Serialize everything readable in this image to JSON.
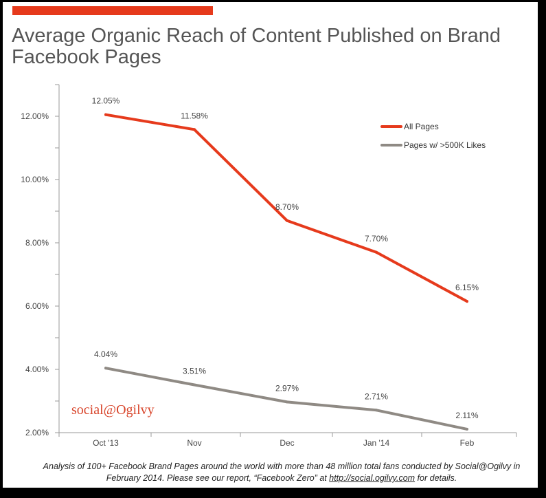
{
  "title": "Average Organic Reach of Content Published on Brand Facebook Pages",
  "brand": "social@Ogilvy",
  "caption": {
    "before": "Analysis of 100+ Facebook Brand Pages around the world with more than 48 million total fans conducted by Social@Ogilvy in February 2014. Please see our report, “Facebook Zero” at ",
    "link": "http://social.ogilvy.com",
    "after": " for details."
  },
  "colors": {
    "accent": "#e63a1c",
    "all_pages": "#e63a1c",
    "large_pages": "#8f8a84"
  },
  "chart_data": {
    "type": "line",
    "title": "Average Organic Reach of Content Published on Brand Facebook Pages",
    "xlabel": "",
    "ylabel": "",
    "categories": [
      "Oct '13",
      "Nov",
      "Dec",
      "Jan '14",
      "Feb"
    ],
    "ylim": [
      2,
      13
    ],
    "yticks": [
      2,
      4,
      6,
      8,
      10,
      12
    ],
    "ytick_labels": [
      "2.00%",
      "4.00%",
      "6.00%",
      "8.00%",
      "10.00%",
      "12.00%"
    ],
    "legend_position": "top-right",
    "series": [
      {
        "name": "All Pages",
        "color": "#e63a1c",
        "values": [
          12.05,
          11.58,
          8.7,
          7.7,
          6.15
        ],
        "labels": [
          "12.05%",
          "11.58%",
          "8.70%",
          "7.70%",
          "6.15%"
        ]
      },
      {
        "name": "Pages w/ >500K Likes",
        "color": "#8f8a84",
        "values": [
          4.04,
          3.51,
          2.97,
          2.71,
          2.11
        ],
        "labels": [
          "4.04%",
          "3.51%",
          "2.97%",
          "2.71%",
          "2.11%"
        ]
      }
    ]
  }
}
